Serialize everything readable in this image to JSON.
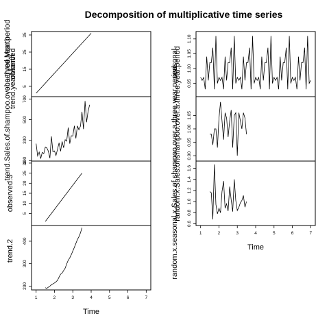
{
  "figure_title": "Decomposition of multiplicative time series",
  "chart_data": [
    {
      "id": "observed",
      "type": "line",
      "ylabel": "observed.Month",
      "x": [
        1.0,
        4.0
      ],
      "y": [
        1,
        36
      ],
      "xlim": [
        0.75,
        7.25
      ],
      "ylim": [
        -1,
        37
      ],
      "yticks": [
        5,
        15,
        25,
        35
      ],
      "ytick_labels": [
        "5",
        "15",
        "25",
        "35"
      ]
    },
    {
      "id": "trend",
      "type": "line",
      "ylabel": "trend.Sales.of.shampoo.over.a.three.year.period",
      "x": [
        1.0,
        1.083,
        1.167,
        1.25,
        1.333,
        1.417,
        1.5,
        1.583,
        1.667,
        1.75,
        1.833,
        1.917,
        2.0,
        2.083,
        2.167,
        2.25,
        2.333,
        2.417,
        2.5,
        2.583,
        2.667,
        2.75,
        2.833,
        2.917,
        3.0,
        3.083,
        3.167,
        3.25,
        3.333,
        3.417,
        3.5,
        3.583,
        3.667,
        3.75,
        3.833,
        3.917
      ],
      "y": [
        266,
        146,
        183,
        119,
        180,
        168,
        232,
        224,
        193,
        123,
        336,
        186,
        194,
        150,
        210,
        273,
        191,
        287,
        226,
        304,
        290,
        422,
        265,
        342,
        340,
        440,
        316,
        439,
        401,
        437,
        576,
        407,
        682,
        475,
        581,
        646
      ],
      "xlim": [
        0.75,
        7.25
      ],
      "ylim": [
        95,
        725
      ],
      "yticks": [
        100,
        300,
        500,
        700
      ],
      "ytick_labels": [
        "100",
        "300",
        "500",
        "700"
      ]
    },
    {
      "id": "seasonal",
      "type": "line",
      "ylabel": "seasonal",
      "x": [
        1.5,
        3.5
      ],
      "y": [
        1,
        25
      ],
      "xlim": [
        0.75,
        7.25
      ],
      "ylim": [
        -1,
        31
      ],
      "yticks": [
        5,
        10,
        15,
        20,
        25,
        30
      ],
      "ytick_labels": [
        "5",
        "10",
        "15",
        "20",
        "25",
        "30"
      ]
    },
    {
      "id": "random",
      "type": "line",
      "ylabel": "random",
      "x": [
        1.5,
        1.583,
        1.667,
        1.75,
        1.833,
        1.917,
        2.0,
        2.083,
        2.167,
        2.25,
        2.333,
        2.417,
        2.5,
        2.583,
        2.667,
        2.75,
        2.833,
        2.917,
        3.0,
        3.083,
        3.167,
        3.25,
        3.333,
        3.417,
        3.5
      ],
      "y": [
        193,
        190,
        195,
        200,
        206,
        210,
        214,
        219,
        226,
        240,
        253,
        258,
        269,
        280,
        299,
        315,
        326,
        340,
        356,
        373,
        390,
        407,
        420,
        437,
        460
      ],
      "xlim": [
        0.75,
        7.25
      ],
      "ylim": [
        183,
        470
      ],
      "yticks": [
        200,
        300,
        400
      ],
      "ytick_labels": [
        "200",
        "300",
        "400"
      ]
    },
    {
      "id": "observed_right",
      "type": "line",
      "ylabel": "observed.Month",
      "x": [
        1.0,
        1.083,
        1.167,
        1.25,
        1.333,
        1.417,
        1.5,
        1.583,
        1.667,
        1.75,
        1.833,
        1.917,
        2.0,
        2.083,
        2.167,
        2.25,
        2.333,
        2.417,
        2.5,
        2.583,
        2.667,
        2.75,
        2.833,
        2.917,
        3.0,
        3.083,
        3.167,
        3.25,
        3.333,
        3.417,
        3.5,
        3.583,
        3.667,
        3.75,
        3.833,
        3.917,
        4.0,
        4.083,
        4.167,
        4.25,
        4.333,
        4.417,
        4.5,
        4.583,
        4.667,
        4.75,
        4.833,
        4.917,
        5.0,
        5.083,
        5.167,
        5.25,
        5.333,
        5.417,
        5.5,
        5.583,
        5.667,
        5.75,
        5.833,
        5.917,
        6.0,
        6.083,
        6.167,
        6.25,
        6.333,
        6.417,
        6.5,
        6.583,
        6.667,
        6.75,
        6.833,
        6.917,
        7.0
      ],
      "y": [
        0.97,
        0.96,
        0.97,
        0.93,
        1.04,
        0.96,
        1.02,
        1.02,
        1.07,
        0.93,
        1.11,
        0.95,
        0.97,
        0.96,
        0.97,
        0.93,
        1.04,
        0.96,
        1.02,
        1.02,
        1.07,
        0.93,
        1.11,
        0.95,
        0.97,
        0.96,
        0.97,
        0.93,
        1.04,
        0.96,
        1.02,
        1.02,
        1.07,
        0.93,
        1.11,
        0.95,
        0.97,
        0.96,
        0.97,
        0.93,
        1.04,
        0.96,
        1.02,
        1.02,
        1.07,
        0.93,
        1.11,
        0.95,
        0.97,
        0.96,
        0.97,
        0.93,
        1.04,
        0.96,
        1.02,
        1.02,
        1.07,
        0.93,
        1.11,
        0.95,
        0.97,
        0.96,
        0.97,
        0.93,
        1.04,
        0.96,
        1.02,
        1.02,
        1.07,
        0.93,
        1.11,
        0.95,
        0.96
      ],
      "xlim": [
        0.75,
        7.25
      ],
      "ylim": [
        0.905,
        1.125
      ],
      "yticks": [
        0.95,
        1.0,
        1.05,
        1.1
      ],
      "ytick_labels": [
        "0.95",
        "1.00",
        "1.05",
        "1.10"
      ]
    },
    {
      "id": "trend_right",
      "type": "line",
      "ylabel": "random.x.Sales.of.shampoo.over.a.three.year.period",
      "x": [
        1.5,
        1.583,
        1.667,
        1.75,
        1.833,
        1.917,
        2.0,
        2.083,
        2.167,
        2.25,
        2.333,
        2.417,
        2.5,
        2.583,
        2.667,
        2.75,
        2.833,
        2.917,
        3.0,
        3.083,
        3.167,
        3.25,
        3.333,
        3.417,
        3.5
      ],
      "y": [
        0.98,
        0.98,
        0.94,
        1.0,
        1.0,
        0.93,
        1.04,
        1.1,
        1.03,
        0.96,
        1.06,
        1.04,
        0.97,
        1.03,
        1.07,
        0.93,
        1.05,
        1.06,
        0.9,
        1.06,
        1.03,
        1.0,
        1.06,
        1.04,
        0.98
      ],
      "xlim": [
        0.75,
        7.25
      ],
      "ylim": [
        0.88,
        1.12
      ],
      "yticks": [
        0.9,
        0.95,
        1.0,
        1.05
      ],
      "ytick_labels": [
        "0.90",
        "0.95",
        "1.00",
        "1.05"
      ]
    },
    {
      "id": "random_right",
      "type": "line",
      "ylabel": "random.x.Sales.of.shampoo.over.a.three.year.period",
      "x": [
        1.5,
        1.583,
        1.667,
        1.75,
        1.833,
        1.917,
        2.0,
        2.083,
        2.167,
        2.25,
        2.333,
        2.417,
        2.5,
        2.583,
        2.667,
        2.75,
        2.833,
        2.917,
        3.0,
        3.083,
        3.167,
        3.25,
        3.333,
        3.417,
        3.5
      ],
      "y": [
        1.18,
        1.16,
        0.68,
        1.67,
        0.95,
        0.78,
        0.88,
        0.8,
        1.18,
        1.37,
        0.88,
        0.96,
        0.83,
        1.27,
        1.03,
        0.82,
        1.4,
        1.02,
        0.84,
        0.9,
        0.98,
        1.02,
        1.11,
        0.9,
        1.0
      ],
      "xlim": [
        0.75,
        7.25
      ],
      "ylim": [
        0.57,
        1.73
      ],
      "yticks": [
        0.6,
        0.8,
        1.0,
        1.2,
        1.4,
        1.6
      ],
      "ytick_labels": [
        "0.6",
        "0.8",
        "1.0",
        "1.2",
        "1.4",
        "1.6"
      ]
    }
  ],
  "xticks": [
    1,
    2,
    3,
    4,
    5,
    6,
    7
  ],
  "xtick_labels": [
    "1",
    "2",
    "3",
    "4",
    "5",
    "6",
    "7"
  ],
  "xlabel": "Time",
  "overlay_labels": {
    "left_top_mid": "observed",
    "left_top_mid2": "trend.yearMonth",
    "left_mid_overlap": "trend.Sales.of.shampoo.over.a.three.year.period",
    "left_obs3": "observed.3",
    "left_trend2": "trend.2",
    "right_seasonal": "seasonal",
    "right_overlap_1": "random.x.Sales.of.shampoo.over.a.three.year.period",
    "right_overlap_2": "random.x.seasonal.x.Sales.of.shampoo.over.a.three.year.period"
  }
}
